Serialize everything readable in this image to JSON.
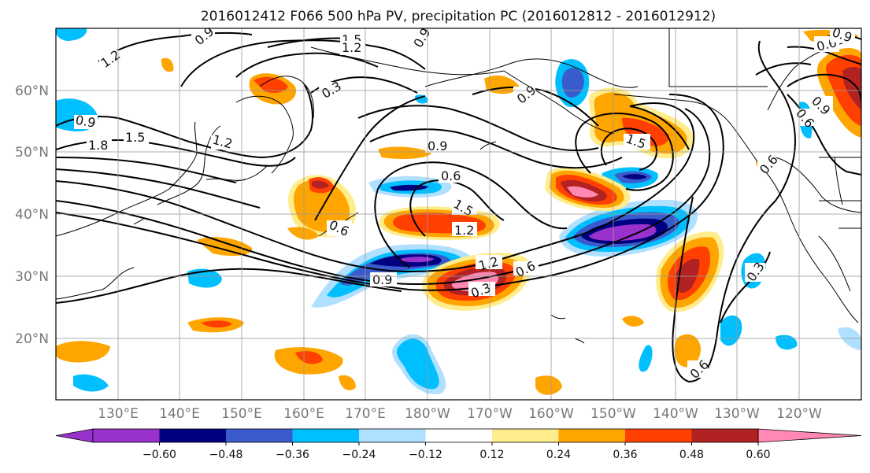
{
  "title": "2016012412 F066 500 hPa PV, precipitation PC (2016012812 - 2016012912)",
  "map": {
    "lon_labels": [
      "130°E",
      "140°E",
      "150°E",
      "160°E",
      "170°E",
      "180°W",
      "170°W",
      "160°W",
      "150°W",
      "140°W",
      "130°W",
      "120°W"
    ],
    "lat_labels": [
      "60°N",
      "50°N",
      "40°N",
      "30°N",
      "20°N"
    ],
    "gridlines": true
  },
  "colorbar": {
    "ticks": [
      "−0.60",
      "−0.48",
      "−0.36",
      "−0.24",
      "−0.12",
      "0.12",
      "0.24",
      "0.36",
      "0.48",
      "0.60"
    ],
    "colors": [
      "#9932cc",
      "#000080",
      "#3a5bcc",
      "#00bfff",
      "#b0e0ff",
      "#ffffff",
      "#ffec8b",
      "#ffa500",
      "#ff4000",
      "#b22222",
      "#ff88b4"
    ],
    "extend": "both"
  },
  "contour_labels": [
    "0.9",
    "1.2",
    "1.5",
    "1.2",
    "0.9",
    "0.3",
    "0.9",
    "1.8",
    "1.5",
    "1.2",
    "0.9",
    "0.6",
    "1.5",
    "1.2",
    "0.6",
    "1.5",
    "0.9",
    "0.6",
    "0.9",
    "0.6",
    "0.6",
    "1.2",
    "0.6",
    "0.9",
    "0.3",
    "0.6",
    "0.3",
    "0.9"
  ]
}
